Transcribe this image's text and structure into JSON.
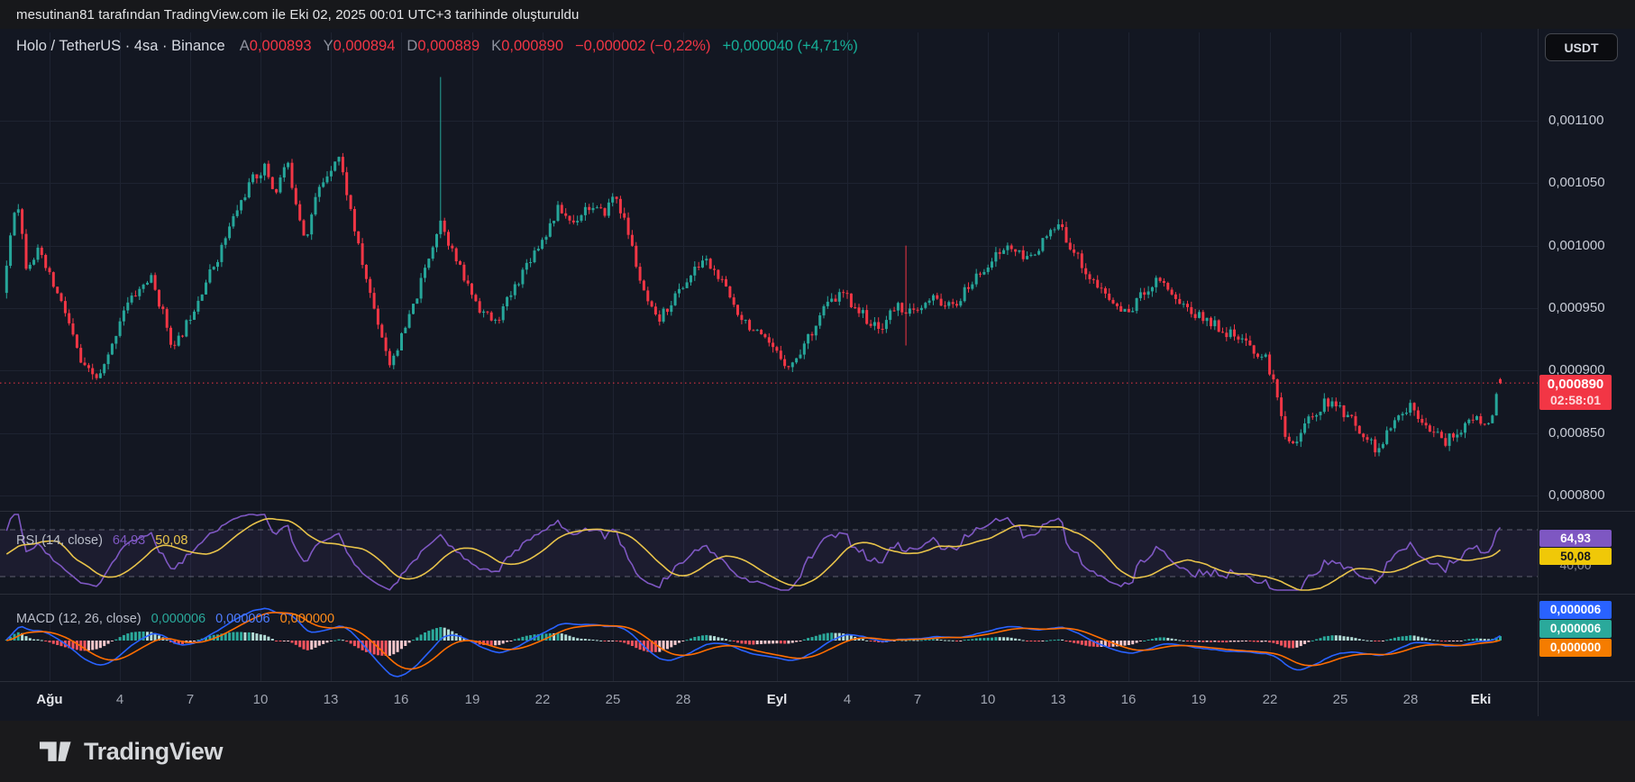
{
  "top_bar": {
    "attribution": "mesutinan81 tarafından TradingView.com ile Eki 02, 2025 00:01 UTC+3 tarihinde oluşturuldu"
  },
  "header": {
    "symbol_title": "Holo / TetherUS · 4sa · Binance",
    "ohlc": [
      {
        "label": "A",
        "value": "0,000893"
      },
      {
        "label": "Y",
        "value": "0,000894"
      },
      {
        "label": "D",
        "value": "0,000889"
      },
      {
        "label": "K",
        "value": "0,000890"
      }
    ],
    "change_bar": "−0,000002 (−0,22%)",
    "change_session": "+0,000040 (+4,71%)",
    "currency_button": "USDT"
  },
  "price_badge": {
    "price": "0,000890",
    "countdown": "02:58:01"
  },
  "rsi": {
    "label_full": "RSI (14, close)",
    "value": "64,93",
    "ma_value": "50,08",
    "axis_label": "40,00"
  },
  "macd": {
    "label_full": "MACD (12, 26, close)",
    "hist_value": "0,000006",
    "macd_value": "0,000006",
    "signal_value": "0,000000"
  },
  "footer": {
    "brand": "TradingView"
  },
  "colors": {
    "chart_bg": "#131722",
    "up": "#26a69a",
    "down": "#f23645",
    "grid": "#1e2331",
    "separator": "#2a2e39",
    "price_line": "#f23645",
    "rsi_line": "#7e57c2",
    "rsi_ma": "#e8c34a",
    "rsi_band": "rgba(126,87,194,0.09)",
    "dashed_level": "rgba(178,182,197,0.45)",
    "macd_line": "#2962ff",
    "macd_signal": "#ff6d00",
    "hist_up": "#2ba99b",
    "hist_up_weak": "#b3dcd6",
    "hist_down": "#f5545f",
    "hist_down_weak": "#f6c8cc",
    "badge_purple": "#7e57c2",
    "badge_yellow": "#f0c808",
    "badge_yellow_text": "#17181b",
    "badge_blue": "#2962ff",
    "badge_teal": "#2aa99b",
    "badge_orange": "#f57c00",
    "badge_red": "#f23645"
  },
  "chart_data": {
    "type": "candlestick",
    "title": "Holo / TetherUS",
    "timeframe": "4sa",
    "exchange": "Binance",
    "quote_currency": "USDT",
    "last_candle": {
      "open": 0.000893,
      "high": 0.000894,
      "low": 0.000889,
      "close": 0.00089
    },
    "change_bar": -2e-06,
    "change_bar_pct": -0.22,
    "change_session": 4e-05,
    "change_session_pct": 4.71,
    "current_price": 0.00089,
    "countdown": "02:58:01",
    "y_axis": {
      "ticks": [
        {
          "label": "0,001100",
          "value": 0.0011
        },
        {
          "label": "0,001050",
          "value": 0.00105
        },
        {
          "label": "0,001000",
          "value": 0.001
        },
        {
          "label": "0,000950",
          "value": 0.00095
        },
        {
          "label": "0,000900",
          "value": 0.0009
        },
        {
          "label": "0,000850",
          "value": 0.00085
        },
        {
          "label": "0,000800",
          "value": 0.0008
        }
      ],
      "range": [
        0.000795,
        0.001145
      ]
    },
    "x_axis": {
      "ticks": [
        {
          "label": "Ağu",
          "day": 0,
          "bold": true
        },
        {
          "label": "4",
          "day": 3
        },
        {
          "label": "7",
          "day": 6
        },
        {
          "label": "10",
          "day": 9
        },
        {
          "label": "13",
          "day": 12
        },
        {
          "label": "16",
          "day": 15
        },
        {
          "label": "19",
          "day": 18
        },
        {
          "label": "22",
          "day": 21
        },
        {
          "label": "25",
          "day": 24
        },
        {
          "label": "28",
          "day": 27
        },
        {
          "label": "Eyl",
          "day": 31,
          "bold": true
        },
        {
          "label": "4",
          "day": 34
        },
        {
          "label": "7",
          "day": 37
        },
        {
          "label": "10",
          "day": 40
        },
        {
          "label": "13",
          "day": 43
        },
        {
          "label": "16",
          "day": 46
        },
        {
          "label": "19",
          "day": 49
        },
        {
          "label": "22",
          "day": 52
        },
        {
          "label": "25",
          "day": 55
        },
        {
          "label": "28",
          "day": 58
        },
        {
          "label": "Eki",
          "day": 61,
          "bold": true
        }
      ]
    },
    "price_anchors": [
      [
        -14,
        0.00096
      ],
      [
        -9,
        0.000955
      ],
      [
        -5,
        0.00097
      ],
      [
        -2.0,
        0.000958
      ],
      [
        -1.7,
        0.001005
      ],
      [
        -1.4,
        0.001042
      ],
      [
        -1.0,
        0.000985
      ],
      [
        -0.5,
        0.000995
      ],
      [
        0.0,
        0.000975
      ],
      [
        0.7,
        0.000945
      ],
      [
        1.4,
        0.000902
      ],
      [
        2.1,
        0.000893
      ],
      [
        2.6,
        0.000915
      ],
      [
        3.1,
        0.000948
      ],
      [
        3.7,
        0.000962
      ],
      [
        4.3,
        0.000975
      ],
      [
        4.9,
        0.000942
      ],
      [
        5.3,
        0.000916
      ],
      [
        5.9,
        0.00094
      ],
      [
        6.5,
        0.000965
      ],
      [
        7.2,
        0.000992
      ],
      [
        7.9,
        0.001025
      ],
      [
        8.6,
        0.001052
      ],
      [
        9.2,
        0.001063
      ],
      [
        9.6,
        0.001041
      ],
      [
        10.1,
        0.001068
      ],
      [
        10.5,
        0.001036
      ],
      [
        10.9,
        0.001005
      ],
      [
        11.4,
        0.001042
      ],
      [
        11.9,
        0.00106
      ],
      [
        12.3,
        0.001074
      ],
      [
        12.7,
        0.00104
      ],
      [
        13.2,
        0.000995
      ],
      [
        13.8,
        0.000952
      ],
      [
        14.5,
        0.000906
      ],
      [
        15.1,
        0.00093
      ],
      [
        15.7,
        0.000962
      ],
      [
        16.3,
        0.001
      ],
      [
        16.7,
        0.001022
      ],
      [
        17.1,
        0.000998
      ],
      [
        17.7,
        0.000972
      ],
      [
        18.4,
        0.000948
      ],
      [
        19.0,
        0.000938
      ],
      [
        19.7,
        0.000962
      ],
      [
        20.4,
        0.000988
      ],
      [
        21.1,
        0.001008
      ],
      [
        21.7,
        0.00103
      ],
      [
        22.3,
        0.001018
      ],
      [
        22.9,
        0.001032
      ],
      [
        23.6,
        0.001025
      ],
      [
        24.1,
        0.001042
      ],
      [
        24.7,
        0.001008
      ],
      [
        25.3,
        0.000962
      ],
      [
        25.9,
        0.000938
      ],
      [
        26.6,
        0.000958
      ],
      [
        27.3,
        0.000975
      ],
      [
        27.9,
        0.00099
      ],
      [
        28.6,
        0.000972
      ],
      [
        29.3,
        0.000948
      ],
      [
        30.1,
        0.00093
      ],
      [
        30.9,
        0.000915
      ],
      [
        31.6,
        0.000903
      ],
      [
        32.3,
        0.000925
      ],
      [
        33.0,
        0.00095
      ],
      [
        33.8,
        0.000962
      ],
      [
        34.5,
        0.000948
      ],
      [
        35.3,
        0.000932
      ],
      [
        36.1,
        0.000952
      ],
      [
        36.9,
        0.000945
      ],
      [
        37.7,
        0.000958
      ],
      [
        38.5,
        0.00095
      ],
      [
        39.3,
        0.00097
      ],
      [
        40.1,
        0.000988
      ],
      [
        40.9,
        0.001
      ],
      [
        41.6,
        0.000988
      ],
      [
        42.3,
        0.001002
      ],
      [
        43.0,
        0.001016
      ],
      [
        43.6,
        0.000998
      ],
      [
        44.3,
        0.000975
      ],
      [
        45.1,
        0.000958
      ],
      [
        45.9,
        0.000945
      ],
      [
        46.6,
        0.000962
      ],
      [
        47.3,
        0.000975
      ],
      [
        48.0,
        0.000958
      ],
      [
        48.8,
        0.000945
      ],
      [
        49.6,
        0.000938
      ],
      [
        50.4,
        0.000928
      ],
      [
        51.2,
        0.000918
      ],
      [
        51.9,
        0.000908
      ],
      [
        52.3,
        0.00088
      ],
      [
        52.7,
        0.000848
      ],
      [
        53.1,
        0.000842
      ],
      [
        53.7,
        0.000862
      ],
      [
        54.4,
        0.000875
      ],
      [
        55.1,
        0.000868
      ],
      [
        55.9,
        0.000852
      ],
      [
        56.6,
        0.000835
      ],
      [
        57.3,
        0.000858
      ],
      [
        58.0,
        0.000872
      ],
      [
        58.7,
        0.000858
      ],
      [
        59.4,
        0.000842
      ],
      [
        60.1,
        0.000852
      ],
      [
        60.8,
        0.000862
      ],
      [
        61.4,
        0.000856
      ],
      [
        61.67,
        0.00088
      ],
      [
        61.84,
        0.000891
      ]
    ],
    "wick_spikes": [
      {
        "day": 16.6,
        "high": 0.001135
      },
      {
        "day": 36.5,
        "high": 0.001,
        "low": 0.00092
      }
    ],
    "indicators": {
      "rsi": {
        "period": 14,
        "source": "close",
        "last": 64.93,
        "ma_last": 50.08,
        "levels": [
          70,
          30
        ],
        "visible_scale_tick": 40.0
      },
      "macd": {
        "fast": 12,
        "slow": 26,
        "source": "close",
        "signal_period": 9,
        "hist_last": 6e-06,
        "macd_last": 6e-06,
        "signal_last": 0.0
      }
    }
  }
}
